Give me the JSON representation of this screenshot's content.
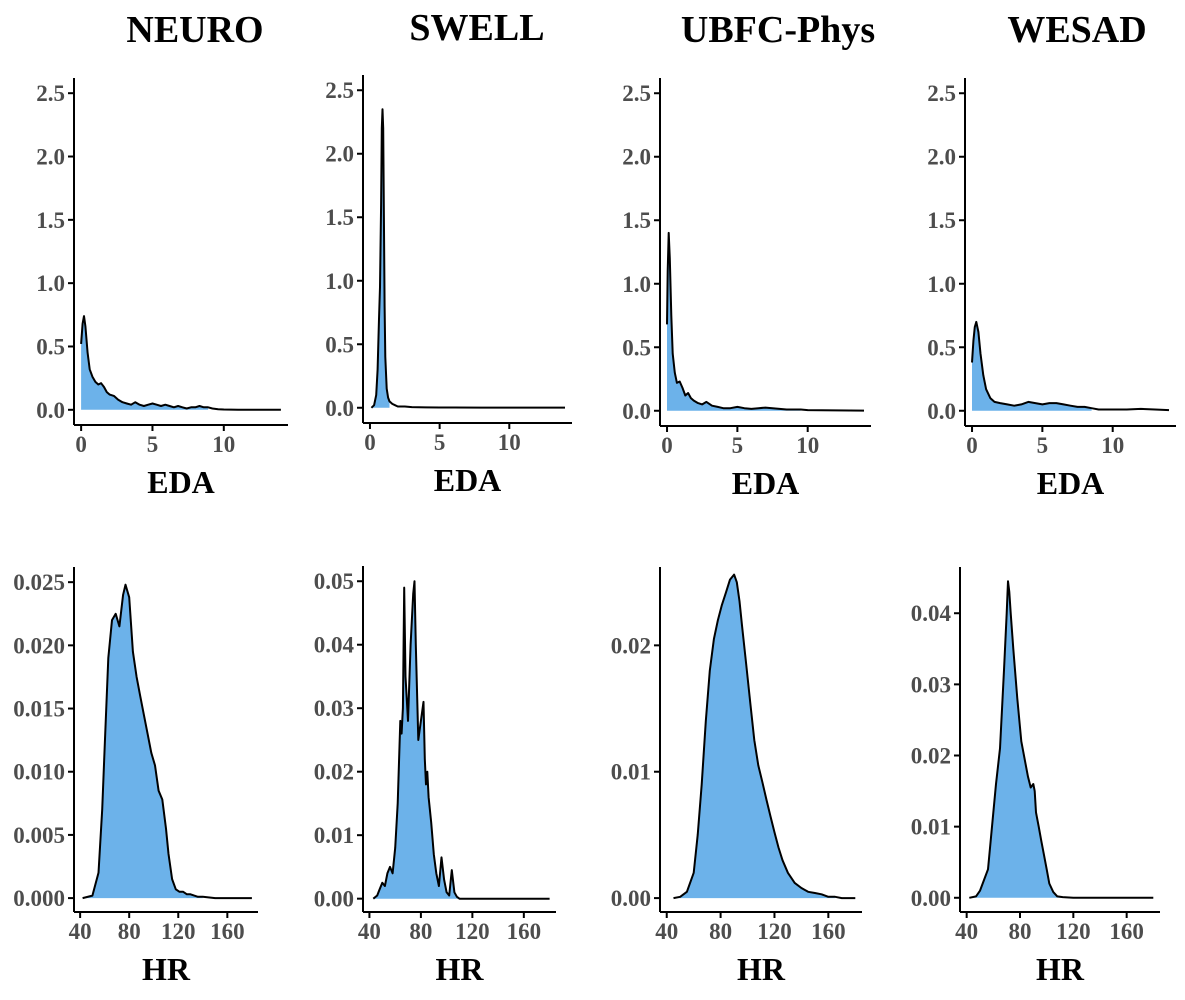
{
  "figure": {
    "column_titles": [
      "NEURO",
      "SWELL",
      "UBFC-Phys",
      "WESAD"
    ],
    "fill_color": "#6cb2ea",
    "line_color": "#000000",
    "axis_color": "#000000",
    "tick_text_color": "#4d4d4d"
  },
  "chart_data": [
    {
      "type": "area",
      "dataset": "NEURO",
      "xlabel": "EDA",
      "ylabel": "",
      "xlim": [
        -0.5,
        14.5
      ],
      "ylim": [
        -0.12,
        2.62
      ],
      "fill_xmax": 9.0,
      "xticks": [
        0,
        5,
        10
      ],
      "yticks": [
        0.0,
        0.5,
        1.0,
        1.5,
        2.0,
        2.5
      ],
      "ydec": 1,
      "x": [
        0,
        0.1,
        0.2,
        0.3,
        0.45,
        0.6,
        0.8,
        1.0,
        1.2,
        1.4,
        1.6,
        1.8,
        2.0,
        2.3,
        2.6,
        2.9,
        3.2,
        3.5,
        3.8,
        4.1,
        4.4,
        4.7,
        5.0,
        5.3,
        5.6,
        5.9,
        6.2,
        6.5,
        6.8,
        7.1,
        7.4,
        7.7,
        8.0,
        8.3,
        8.6,
        8.9,
        9.2,
        9.6,
        10,
        11,
        12,
        13,
        14
      ],
      "y": [
        0.52,
        0.68,
        0.74,
        0.66,
        0.45,
        0.32,
        0.26,
        0.22,
        0.2,
        0.21,
        0.18,
        0.14,
        0.12,
        0.11,
        0.08,
        0.06,
        0.05,
        0.04,
        0.06,
        0.04,
        0.03,
        0.04,
        0.05,
        0.04,
        0.03,
        0.04,
        0.03,
        0.02,
        0.03,
        0.02,
        0.01,
        0.02,
        0.02,
        0.03,
        0.02,
        0.02,
        0.01,
        0.005,
        0.002,
        0.001,
        0.001,
        0.001,
        0.001
      ]
    },
    {
      "type": "area",
      "dataset": "SWELL",
      "xlabel": "EDA",
      "ylabel": "",
      "xlim": [
        -0.5,
        14.5
      ],
      "ylim": [
        -0.12,
        2.62
      ],
      "fill_xmax": 1.4,
      "xticks": [
        0,
        5,
        10
      ],
      "yticks": [
        0.0,
        0.5,
        1.0,
        1.5,
        2.0,
        2.5
      ],
      "ydec": 1,
      "x": [
        0.1,
        0.3,
        0.45,
        0.55,
        0.65,
        0.72,
        0.8,
        0.85,
        0.9,
        0.95,
        1.0,
        1.05,
        1.1,
        1.2,
        1.3,
        1.4,
        1.6,
        1.8,
        2.0,
        2.5,
        3.0,
        4,
        5,
        6,
        8,
        10,
        12,
        14
      ],
      "y": [
        0.0,
        0.02,
        0.1,
        0.3,
        0.7,
        0.95,
        1.6,
        2.2,
        2.35,
        2.2,
        1.5,
        0.8,
        0.4,
        0.15,
        0.08,
        0.05,
        0.03,
        0.02,
        0.01,
        0.01,
        0.005,
        0.003,
        0.002,
        0.002,
        0.001,
        0.001,
        0.001,
        0.001
      ]
    },
    {
      "type": "area",
      "dataset": "UBFC-Phys",
      "xlabel": "EDA",
      "ylabel": "",
      "xlim": [
        -0.5,
        14.5
      ],
      "ylim": [
        -0.12,
        2.62
      ],
      "fill_xmax": 9.5,
      "xticks": [
        0,
        5,
        10
      ],
      "yticks": [
        0.0,
        0.5,
        1.0,
        1.5,
        2.0,
        2.5
      ],
      "ydec": 1,
      "x": [
        0,
        0.05,
        0.12,
        0.2,
        0.3,
        0.4,
        0.55,
        0.7,
        0.9,
        1.1,
        1.3,
        1.5,
        1.7,
        1.9,
        2.2,
        2.5,
        2.8,
        3.2,
        3.6,
        4.0,
        4.5,
        5.0,
        5.5,
        6.0,
        6.5,
        7.0,
        7.5,
        8.0,
        8.5,
        9.0,
        9.5,
        10,
        11,
        12,
        13,
        14
      ],
      "y": [
        0.68,
        1.1,
        1.4,
        1.2,
        0.75,
        0.45,
        0.3,
        0.22,
        0.23,
        0.18,
        0.12,
        0.14,
        0.1,
        0.08,
        0.06,
        0.05,
        0.07,
        0.04,
        0.03,
        0.02,
        0.02,
        0.03,
        0.02,
        0.015,
        0.02,
        0.025,
        0.02,
        0.015,
        0.01,
        0.01,
        0.01,
        0.005,
        0.004,
        0.003,
        0.002,
        0.001
      ]
    },
    {
      "type": "area",
      "dataset": "WESAD",
      "xlabel": "EDA",
      "ylabel": "",
      "xlim": [
        -0.5,
        14.5
      ],
      "ylim": [
        -0.12,
        2.62
      ],
      "fill_xmax": 8.5,
      "xticks": [
        0,
        5,
        10
      ],
      "yticks": [
        0.0,
        0.5,
        1.0,
        1.5,
        2.0,
        2.5
      ],
      "ydec": 1,
      "x": [
        0,
        0.1,
        0.2,
        0.3,
        0.45,
        0.6,
        0.8,
        1.0,
        1.3,
        1.6,
        2.0,
        2.5,
        3.0,
        3.5,
        4.0,
        4.5,
        5.0,
        5.5,
        6.0,
        6.5,
        7.0,
        7.5,
        8.0,
        8.5,
        9.0,
        10,
        11,
        12,
        13,
        14
      ],
      "y": [
        0.38,
        0.55,
        0.66,
        0.7,
        0.62,
        0.45,
        0.28,
        0.17,
        0.1,
        0.07,
        0.06,
        0.05,
        0.04,
        0.05,
        0.07,
        0.06,
        0.05,
        0.06,
        0.06,
        0.05,
        0.04,
        0.03,
        0.03,
        0.02,
        0.01,
        0.01,
        0.01,
        0.015,
        0.01,
        0.005
      ]
    },
    {
      "type": "area",
      "dataset": "NEURO",
      "xlabel": "HR",
      "ylabel": "",
      "xlim": [
        35,
        185
      ],
      "ylim": [
        -0.0011,
        0.0262
      ],
      "fill_xmax": 140,
      "xticks": [
        40,
        80,
        120,
        160
      ],
      "yticks": [
        0.0,
        0.005,
        0.01,
        0.015,
        0.02,
        0.025
      ],
      "ydec": 3,
      "x": [
        42,
        50,
        55,
        58,
        60,
        63,
        66,
        69,
        72,
        75,
        77,
        80,
        83,
        86,
        89,
        92,
        95,
        98,
        101,
        104,
        107,
        110,
        112,
        115,
        118,
        121,
        124,
        127,
        130,
        133,
        136,
        140,
        150,
        165,
        180
      ],
      "y": [
        0.0,
        0.0002,
        0.002,
        0.007,
        0.012,
        0.019,
        0.022,
        0.0225,
        0.0215,
        0.024,
        0.0248,
        0.0238,
        0.0195,
        0.0175,
        0.016,
        0.0145,
        0.013,
        0.0115,
        0.0105,
        0.0085,
        0.0078,
        0.0055,
        0.0035,
        0.0015,
        0.0007,
        0.0005,
        0.0005,
        0.0003,
        0.0003,
        0.0002,
        0.0001,
        0.0001,
        0.0,
        0.0,
        0.0
      ]
    },
    {
      "type": "area",
      "dataset": "SWELL",
      "xlabel": "HR",
      "ylabel": "",
      "xlim": [
        35,
        185
      ],
      "ylim": [
        -0.0021,
        0.0524
      ],
      "fill_xmax": 110,
      "xticks": [
        40,
        80,
        120,
        160
      ],
      "yticks": [
        0.0,
        0.01,
        0.02,
        0.03,
        0.04,
        0.05
      ],
      "ydec": 2,
      "x": [
        43,
        46,
        48,
        50,
        52,
        54,
        56,
        58,
        60,
        62,
        64,
        65,
        66,
        67,
        68,
        70,
        72,
        74,
        75,
        76,
        78,
        80,
        82,
        83,
        84,
        85,
        86,
        88,
        90,
        92,
        94,
        96,
        98,
        100,
        102,
        104,
        106,
        108,
        110,
        120,
        180
      ],
      "y": [
        0.0,
        0.0005,
        0.0015,
        0.0025,
        0.002,
        0.004,
        0.005,
        0.004,
        0.008,
        0.015,
        0.028,
        0.026,
        0.03,
        0.049,
        0.035,
        0.028,
        0.04,
        0.048,
        0.05,
        0.04,
        0.025,
        0.028,
        0.031,
        0.022,
        0.018,
        0.02,
        0.016,
        0.012,
        0.007,
        0.004,
        0.002,
        0.0065,
        0.003,
        0.001,
        0.0005,
        0.0045,
        0.001,
        0.0003,
        0.0,
        0.0,
        0.0
      ]
    },
    {
      "type": "area",
      "dataset": "UBFC-Phys",
      "xlabel": "HR",
      "ylabel": "",
      "xlim": [
        35,
        185
      ],
      "ylim": [
        -0.0011,
        0.0262
      ],
      "fill_xmax": 165,
      "xticks": [
        40,
        80,
        120,
        160
      ],
      "yticks": [
        0.0,
        0.01,
        0.02
      ],
      "ydec": 2,
      "x": [
        45,
        50,
        55,
        60,
        63,
        66,
        69,
        72,
        75,
        78,
        81,
        84,
        87,
        90,
        92,
        94,
        96,
        99,
        102,
        105,
        108,
        111,
        114,
        117,
        120,
        123,
        126,
        130,
        135,
        140,
        145,
        150,
        155,
        160,
        165,
        170,
        180
      ],
      "y": [
        0.0,
        0.0001,
        0.0005,
        0.002,
        0.005,
        0.009,
        0.014,
        0.018,
        0.0205,
        0.022,
        0.0232,
        0.0242,
        0.0252,
        0.0256,
        0.025,
        0.0235,
        0.0215,
        0.0185,
        0.0155,
        0.0125,
        0.0105,
        0.0092,
        0.0078,
        0.0065,
        0.0052,
        0.004,
        0.003,
        0.002,
        0.0012,
        0.0008,
        0.0005,
        0.0004,
        0.0003,
        0.0001,
        0.0001,
        0.0,
        0.0
      ]
    },
    {
      "type": "area",
      "dataset": "WESAD",
      "xlabel": "HR",
      "ylabel": "",
      "xlim": [
        35,
        185
      ],
      "ylim": [
        -0.002,
        0.0465
      ],
      "fill_xmax": 115,
      "xticks": [
        40,
        80,
        120,
        160
      ],
      "yticks": [
        0.0,
        0.01,
        0.02,
        0.03,
        0.04
      ],
      "ydec": 2,
      "x": [
        42,
        47,
        50,
        53,
        56,
        59,
        62,
        65,
        68,
        70,
        71,
        72,
        73,
        75,
        78,
        81,
        84,
        86,
        88,
        90,
        91,
        92,
        94,
        96,
        98,
        100,
        102,
        105,
        108,
        112,
        120,
        180
      ],
      "y": [
        0.0,
        0.0002,
        0.001,
        0.0025,
        0.004,
        0.01,
        0.016,
        0.021,
        0.032,
        0.04,
        0.0445,
        0.043,
        0.04,
        0.035,
        0.028,
        0.022,
        0.019,
        0.017,
        0.0155,
        0.016,
        0.015,
        0.012,
        0.01,
        0.008,
        0.006,
        0.004,
        0.002,
        0.0008,
        0.0002,
        0.0001,
        0.0,
        0.0
      ]
    }
  ]
}
